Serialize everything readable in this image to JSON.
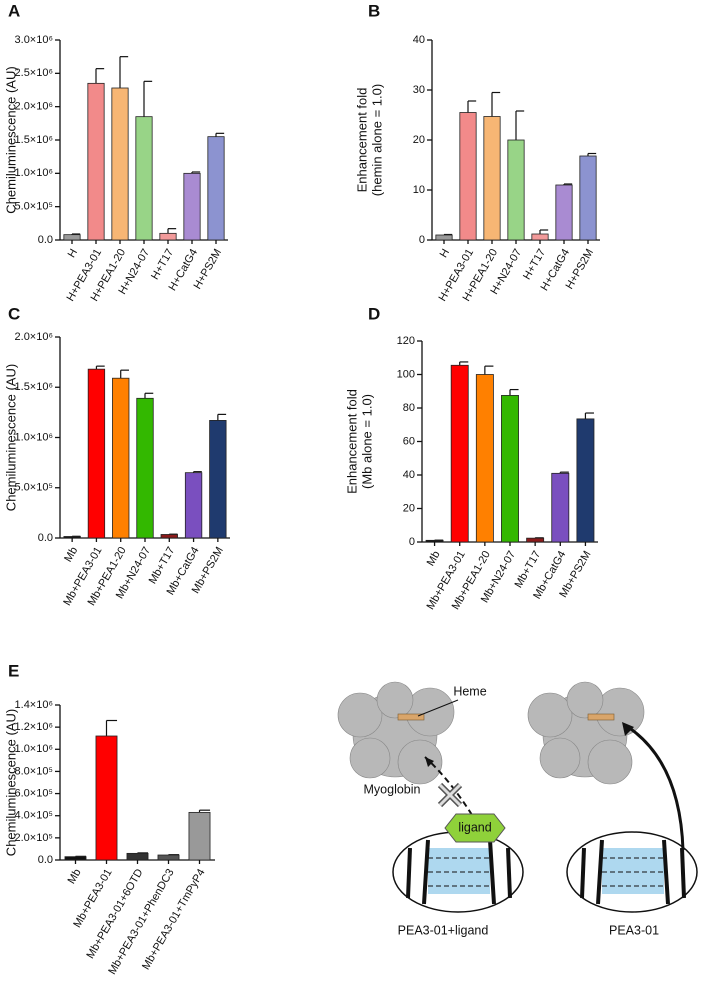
{
  "chart_data": [
    {
      "type": "bar",
      "panel": "A",
      "ylabel": "Chemiluminescence (AU)",
      "categories": [
        "H",
        "H+PEA3-01",
        "H+PEA1-20",
        "H+N24-07",
        "H+T17",
        "H+CatG4",
        "H+PS2M"
      ],
      "values": [
        80000,
        2350000,
        2280000,
        1850000,
        100000,
        1000000,
        1550000
      ],
      "errors": [
        10000,
        220000,
        470000,
        530000,
        70000,
        20000,
        50000
      ],
      "colors": [
        "#9a9a9a",
        "#f28a8a",
        "#f7b674",
        "#98d487",
        "#f29a9a",
        "#a98bd2",
        "#8c93d0"
      ],
      "ylim": [
        0,
        3000000
      ],
      "yticks": [
        {
          "value": 0,
          "label": "0.0"
        },
        {
          "value": 500000,
          "label": "5.0×10⁵"
        },
        {
          "value": 1000000,
          "label": "1.0×10⁶"
        },
        {
          "value": 1500000,
          "label": "1.5×10⁶"
        },
        {
          "value": 2000000,
          "label": "2.0×10⁶"
        },
        {
          "value": 2500000,
          "label": "2.5×10⁶"
        },
        {
          "value": 3000000,
          "label": "3.0×10⁶"
        }
      ]
    },
    {
      "type": "bar",
      "panel": "B",
      "ylabel": [
        "Enhancement fold",
        "(hemin alone = 1.0)"
      ],
      "categories": [
        "H",
        "H+PEA3-01",
        "H+PEA1-20",
        "H+N24-07",
        "H+T17",
        "H+CatG4",
        "H+PS2M"
      ],
      "values": [
        1,
        25.5,
        24.7,
        20,
        1.2,
        11,
        16.8
      ],
      "errors": [
        0.1,
        2.3,
        4.8,
        5.8,
        0.8,
        0.2,
        0.5
      ],
      "colors": [
        "#9a9a9a",
        "#f28a8a",
        "#f7b674",
        "#98d487",
        "#f29a9a",
        "#a98bd2",
        "#8c93d0"
      ],
      "ylim": [
        0,
        40
      ],
      "yticks": [
        0,
        10,
        20,
        30,
        40
      ]
    },
    {
      "type": "bar",
      "panel": "C",
      "ylabel": "Chemiluminescence (AU)",
      "categories": [
        "Mb",
        "Mb+PEA3-01",
        "Mb+PEA1-20",
        "Mb+N24-07",
        "Mb+T17",
        "Mb+CatG4",
        "Mb+PS2M"
      ],
      "values": [
        15000,
        1680000,
        1590000,
        1390000,
        35000,
        650000,
        1170000
      ],
      "errors": [
        2000,
        30000,
        80000,
        50000,
        3000,
        10000,
        60000
      ],
      "colors": [
        "#111111",
        "#ff0000",
        "#ff8000",
        "#33b800",
        "#8b1a1a",
        "#7a4fbf",
        "#1f3a6e"
      ],
      "ylim": [
        0,
        2000000
      ],
      "yticks": [
        {
          "value": 0,
          "label": "0.0"
        },
        {
          "value": 500000,
          "label": "5.0×10⁵"
        },
        {
          "value": 1000000,
          "label": "1.0×10⁶"
        },
        {
          "value": 1500000,
          "label": "1.5×10⁶"
        },
        {
          "value": 2000000,
          "label": "2.0×10⁶"
        }
      ]
    },
    {
      "type": "bar",
      "panel": "D",
      "ylabel": [
        "Enhancement fold",
        "(Mb alone = 1.0)"
      ],
      "categories": [
        "Mb",
        "Mb+PEA3-01",
        "Mb+PEA1-20",
        "Mb+N24-07",
        "Mb+T17",
        "Mb+CatG4",
        "Mb+PS2M"
      ],
      "values": [
        1,
        105.5,
        100,
        87.5,
        2.3,
        41,
        73.5
      ],
      "errors": [
        0.1,
        2,
        5,
        3.5,
        0.2,
        0.7,
        3.5
      ],
      "colors": [
        "#111111",
        "#ff0000",
        "#ff8000",
        "#33b800",
        "#8b1a1a",
        "#7a4fbf",
        "#1f3a6e"
      ],
      "ylim": [
        0,
        120
      ],
      "yticks": [
        0,
        20,
        40,
        60,
        80,
        100,
        120
      ]
    },
    {
      "type": "bar",
      "panel": "E",
      "ylabel": "Chemiluminescence (AU)",
      "categories": [
        "Mb",
        "Mb+PEA3-01",
        "Mb+PEA3-01+6OTD",
        "Mb+PEA3-01+PhenDC3",
        "Mb+PEA3-01+TmPyP4"
      ],
      "values": [
        30000,
        1120000,
        60000,
        45000,
        430000
      ],
      "errors": [
        3000,
        140000,
        4000,
        3000,
        20000
      ],
      "colors": [
        "#111111",
        "#ff0000",
        "#333333",
        "#555555",
        "#999999"
      ],
      "ylim": [
        0,
        1400000
      ],
      "yticks": [
        {
          "value": 0,
          "label": "0.0"
        },
        {
          "value": 200000,
          "label": "2.0×10⁵"
        },
        {
          "value": 400000,
          "label": "4.0×10⁵"
        },
        {
          "value": 600000,
          "label": "6.0×10⁵"
        },
        {
          "value": 800000,
          "label": "8.0×10⁵"
        },
        {
          "value": 1000000,
          "label": "1.0×10⁶"
        },
        {
          "value": 1200000,
          "label": "1.2×10⁶"
        },
        {
          "value": 1400000,
          "label": "1.4×10⁶"
        }
      ]
    }
  ],
  "diagram": {
    "heme": "Heme",
    "protein": "Myoglobin",
    "ligand": "ligand",
    "left_label": "PEA3-01+ligand",
    "right_label": "PEA3-01"
  }
}
